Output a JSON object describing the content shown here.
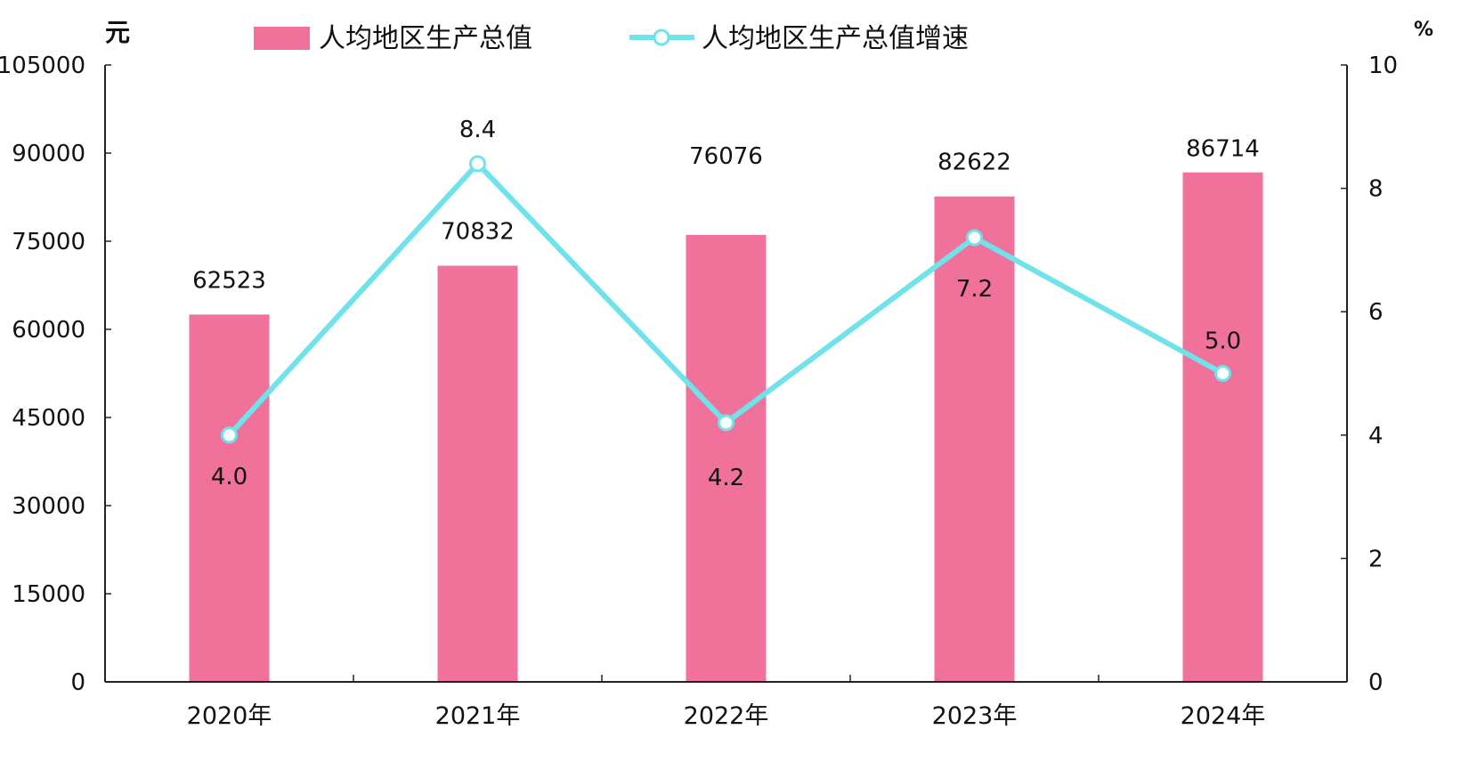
{
  "chart_data": {
    "type": "bar",
    "categories": [
      "2020年",
      "2021年",
      "2022年",
      "2023年",
      "2024年"
    ],
    "series": [
      {
        "name": "人均地区生产总值",
        "type": "bar",
        "axis": "left",
        "values": [
          62523,
          70832,
          76076,
          82622,
          86714
        ],
        "color": "#f0719a"
      },
      {
        "name": "人均地区生产总值增速",
        "type": "line",
        "axis": "right",
        "values": [
          4.0,
          8.4,
          4.2,
          7.2,
          5.0
        ],
        "color": "#6fe2ea"
      }
    ],
    "value_labels": {
      "bars": [
        "62523",
        "70832",
        "76076",
        "82622",
        "86714"
      ],
      "line": [
        "4.0",
        "8.4",
        "4.2",
        "7.2",
        "5.0"
      ]
    },
    "left_axis": {
      "unit": "元",
      "ylim": [
        0,
        105000
      ],
      "ticks": [
        "0",
        "15000",
        "30000",
        "45000",
        "60000",
        "75000",
        "90000",
        "105000"
      ]
    },
    "right_axis": {
      "unit": "%",
      "ylim": [
        0,
        10
      ],
      "ticks": [
        "0",
        "2",
        "4",
        "6",
        "8",
        "10"
      ]
    },
    "legend_position": "top",
    "grid": false
  }
}
